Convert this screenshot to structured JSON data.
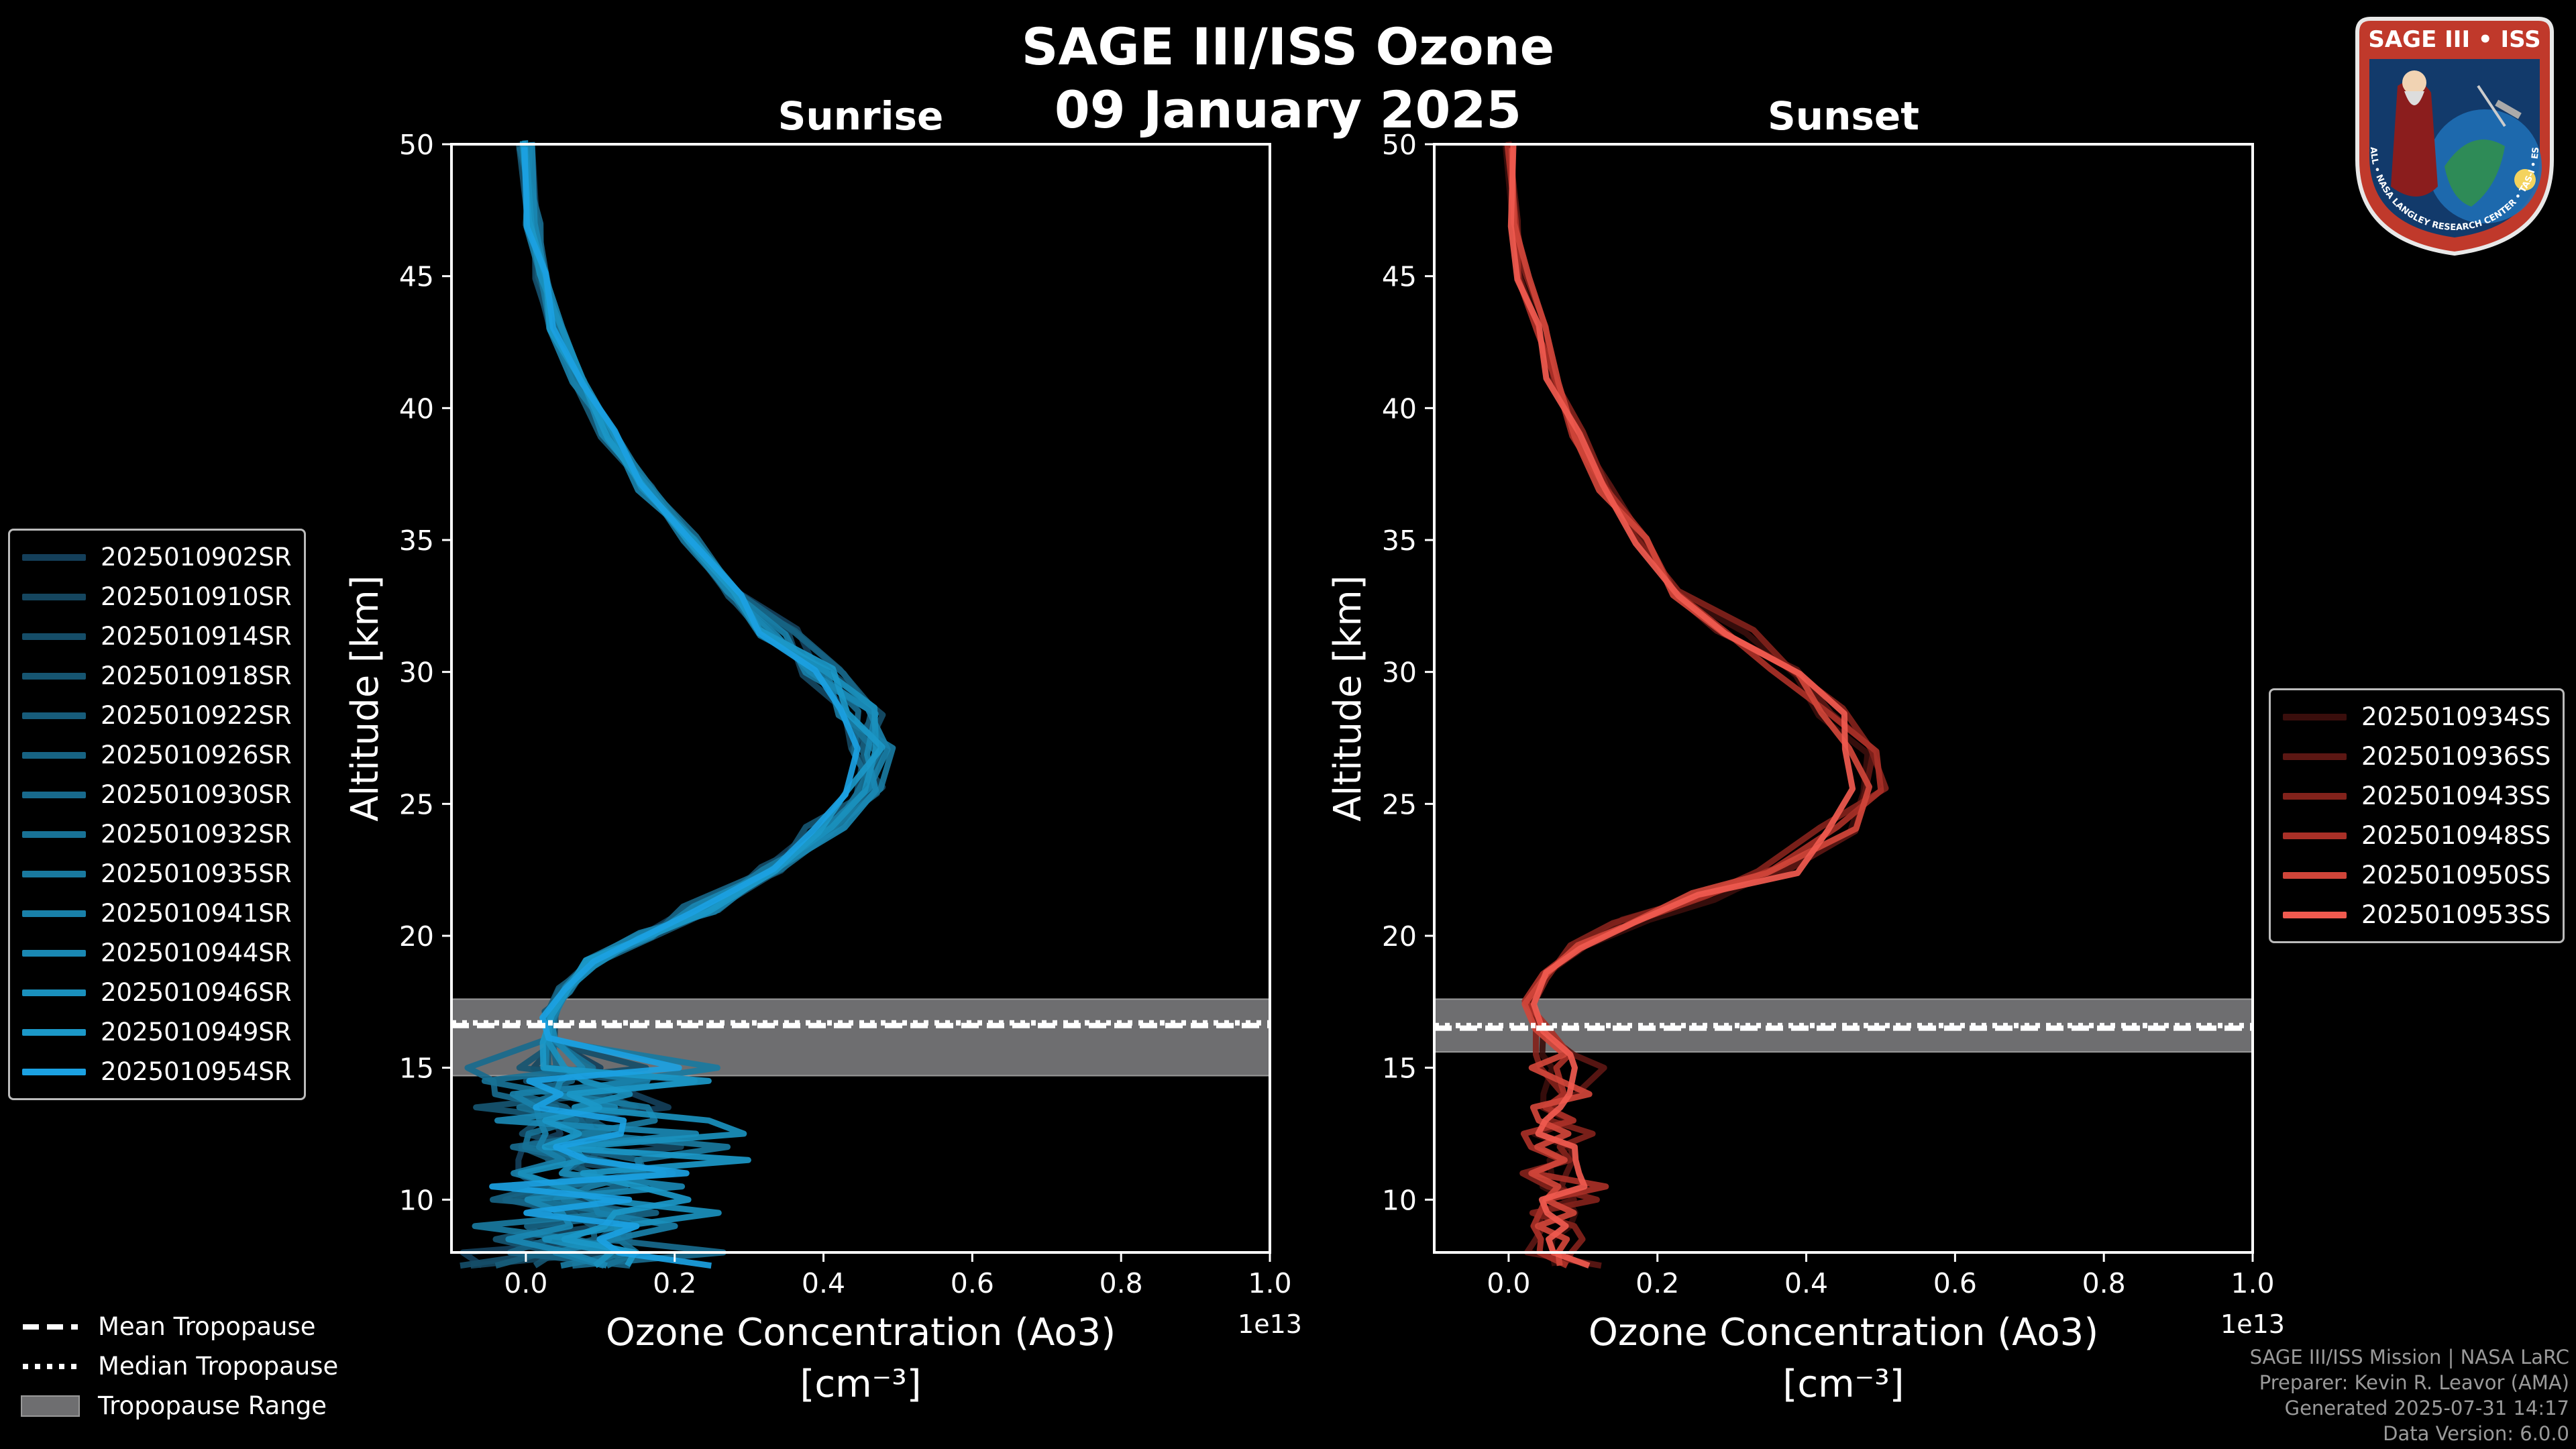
{
  "figure": {
    "title_line1": "SAGE III/ISS Ozone",
    "title_line2": "09 January 2025",
    "footer_lines": [
      "SAGE III/ISS Mission | NASA LaRC",
      "Preparer: Kevin R. Leavor (AMA)",
      "Generated 2025-07-31 14:17",
      "Data Version: 6.0.0"
    ],
    "badge": {
      "title": "SAGE III • ISS",
      "ring_text": "BALL • NASA LANGLEY RESEARCH CENTER • TAS-I • ESA"
    },
    "colors": {
      "background": "#000000",
      "sunrise": "#1ba1e2",
      "sunset": "#f05a4f",
      "tropopause_band": "#6e6e70"
    }
  },
  "tropopause_key": {
    "mean": "Mean Tropopause",
    "median": "Median Tropopause",
    "range": "Tropopause Range"
  },
  "chart_data": [
    {
      "type": "line",
      "panel": "sunrise",
      "title": "Sunrise",
      "xlabel": "Ozone Concentration (Ao3)",
      "xunits": "[cm⁻³]",
      "ylabel": "Altitude [km]",
      "x_multiplier_label": "1e13",
      "xlim": [
        -0.1,
        1.0
      ],
      "ylim": [
        8,
        50
      ],
      "xticks": [
        "0.0",
        "0.2",
        "0.4",
        "0.6",
        "0.8",
        "1.0"
      ],
      "yticks": [
        "10",
        "15",
        "20",
        "25",
        "30",
        "35",
        "40",
        "45",
        "50"
      ],
      "tropopause": {
        "mean": 16.6,
        "median": 16.7,
        "range": [
          14.7,
          17.6
        ]
      },
      "series_names": [
        "2025010902SR",
        "2025010910SR",
        "2025010914SR",
        "2025010918SR",
        "2025010922SR",
        "2025010926SR",
        "2025010930SR",
        "2025010932SR",
        "2025010935SR",
        "2025010941SR",
        "2025010944SR",
        "2025010946SR",
        "2025010949SR",
        "2025010954SR"
      ],
      "series_colors": [
        "#143f5a",
        "#15465f",
        "#154d68",
        "#165571",
        "#175c7a",
        "#176383",
        "#186a8d",
        "#187296",
        "#19799f",
        "#1980a9",
        "#1a88b3",
        "#1a90bd",
        "#1b98c8",
        "#1ba1e2"
      ],
      "peak_altitude_km": 26.8,
      "peak_value": 0.46,
      "profile": [
        [
          0.0,
          50
        ],
        [
          0.01,
          47
        ],
        [
          0.02,
          45
        ],
        [
          0.04,
          43
        ],
        [
          0.07,
          41
        ],
        [
          0.11,
          39
        ],
        [
          0.16,
          37
        ],
        [
          0.22,
          35
        ],
        [
          0.28,
          33
        ],
        [
          0.34,
          31.5
        ],
        [
          0.4,
          30
        ],
        [
          0.45,
          28.5
        ],
        [
          0.465,
          27
        ],
        [
          0.45,
          25.5
        ],
        [
          0.4,
          24
        ],
        [
          0.32,
          22.5
        ],
        [
          0.24,
          21
        ],
        [
          0.16,
          20
        ],
        [
          0.09,
          19
        ],
        [
          0.05,
          18
        ],
        [
          0.03,
          17
        ],
        [
          0.03,
          16
        ],
        [
          0.04,
          15
        ],
        [
          0.03,
          14
        ],
        [
          0.03,
          13
        ],
        [
          0.03,
          12
        ],
        [
          0.03,
          11
        ],
        [
          0.03,
          10
        ],
        [
          0.03,
          9
        ],
        [
          0.03,
          8
        ]
      ],
      "noisy_below_km": 16
    },
    {
      "type": "line",
      "panel": "sunset",
      "title": "Sunset",
      "xlabel": "Ozone Concentration (Ao3)",
      "xunits": "[cm⁻³]",
      "ylabel": "Altitude [km]",
      "x_multiplier_label": "1e13",
      "xlim": [
        -0.1,
        1.0
      ],
      "ylim": [
        8,
        50
      ],
      "xticks": [
        "0.0",
        "0.2",
        "0.4",
        "0.6",
        "0.8",
        "1.0"
      ],
      "yticks": [
        "10",
        "15",
        "20",
        "25",
        "30",
        "35",
        "40",
        "45",
        "50"
      ],
      "tropopause": {
        "mean": 16.5,
        "median": 16.6,
        "range": [
          15.6,
          17.6
        ]
      },
      "series_names": [
        "2025010934SS",
        "2025010936SS",
        "2025010943SS",
        "2025010948SS",
        "2025010950SS",
        "2025010953SS"
      ],
      "series_colors": [
        "#3a0e0c",
        "#5c1713",
        "#82221b",
        "#a93027",
        "#d04539",
        "#f05a4f"
      ],
      "peak_altitude_km": 25.5,
      "peak_value": 0.5,
      "profile": [
        [
          0.0,
          50
        ],
        [
          0.01,
          47
        ],
        [
          0.02,
          45
        ],
        [
          0.04,
          43
        ],
        [
          0.06,
          41
        ],
        [
          0.09,
          39
        ],
        [
          0.13,
          37
        ],
        [
          0.18,
          35
        ],
        [
          0.23,
          33
        ],
        [
          0.3,
          31.5
        ],
        [
          0.37,
          30
        ],
        [
          0.43,
          28.5
        ],
        [
          0.47,
          27
        ],
        [
          0.48,
          25.5
        ],
        [
          0.44,
          24
        ],
        [
          0.36,
          22.5
        ],
        [
          0.26,
          21.5
        ],
        [
          0.16,
          20.5
        ],
        [
          0.09,
          19.5
        ],
        [
          0.05,
          18.5
        ],
        [
          0.03,
          17.5
        ],
        [
          0.04,
          16.5
        ],
        [
          0.05,
          15.5
        ],
        [
          0.05,
          14
        ],
        [
          0.05,
          13
        ],
        [
          0.05,
          12
        ],
        [
          0.05,
          11
        ],
        [
          0.05,
          10
        ],
        [
          0.05,
          9
        ],
        [
          0.05,
          8
        ]
      ],
      "noisy_below_km": 16
    }
  ]
}
